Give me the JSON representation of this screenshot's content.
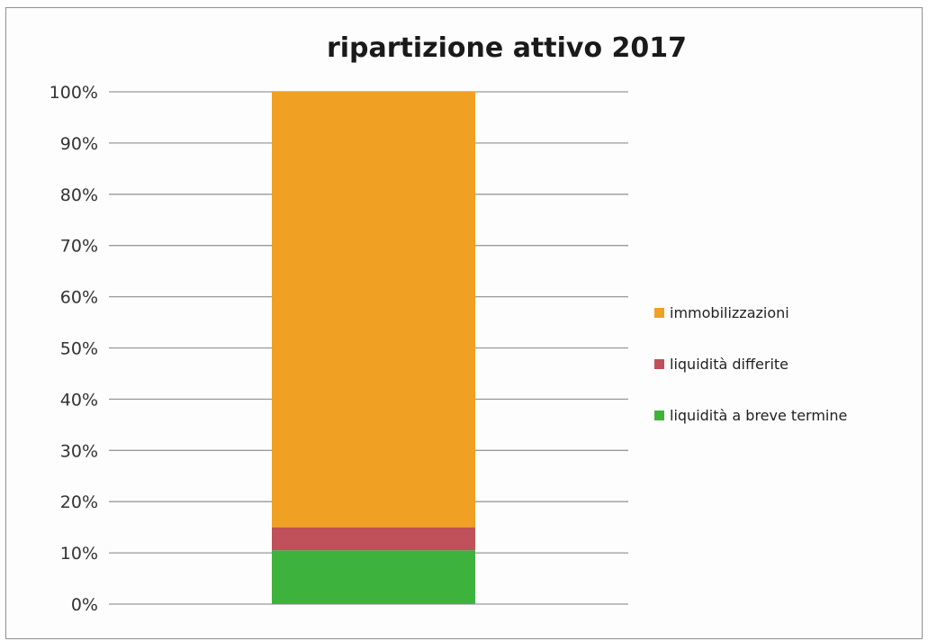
{
  "chart_data": {
    "type": "bar",
    "stacked": true,
    "percent_stacked": true,
    "title": "ripartizione attivo 2017",
    "categories": [
      ""
    ],
    "series": [
      {
        "name": "liquidità a breve termine",
        "values": [
          10.5
        ],
        "color": "#3db33d"
      },
      {
        "name": "liquidità differite",
        "values": [
          4.5
        ],
        "color": "#c0505a"
      },
      {
        "name": "immobilizzazioni",
        "values": [
          85.0
        ],
        "color": "#f0a023"
      }
    ],
    "y_ticks": [
      "0%",
      "10%",
      "20%",
      "30%",
      "40%",
      "50%",
      "60%",
      "70%",
      "80%",
      "90%",
      "100%"
    ],
    "ylim": [
      0,
      100
    ],
    "grid": true,
    "legend": {
      "position": "right",
      "entries": [
        "immobilizzazioni",
        "liquidità differite",
        "liquidità a breve termine"
      ]
    }
  }
}
